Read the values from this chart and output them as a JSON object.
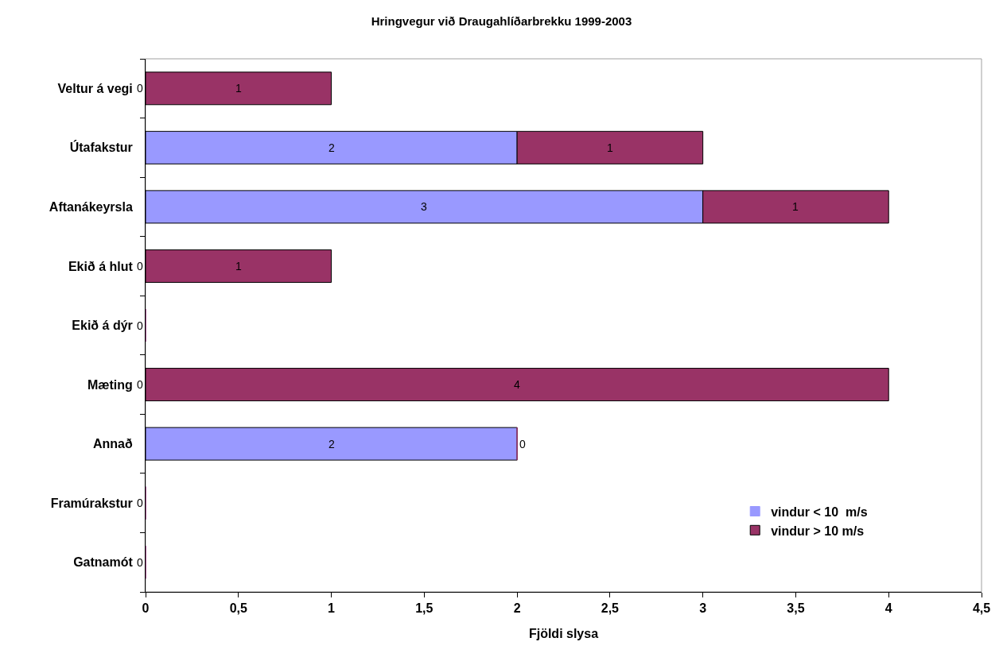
{
  "chart_data": {
    "type": "bar",
    "title": "Hringvegur við Draugahlíðarbrekku 1999-2003",
    "xlabel": "Fjöldi slysa",
    "orientation": "horizontal",
    "stacked": true,
    "categories": [
      "Veltur á vegi",
      "Útafakstur",
      "Aftanákeyrsla",
      "Ekið á hlut",
      "Ekið á dýr",
      "Mæting",
      "Annað",
      "Framúrakstur",
      "Gatnamót"
    ],
    "series": [
      {
        "name": "vindur < 10  m/s",
        "color": "#9999ff",
        "values": [
          0,
          2,
          3,
          0,
          0,
          0,
          2,
          0,
          0
        ],
        "value_labels": [
          "0",
          "2",
          "3",
          "0",
          "0",
          "0",
          "2",
          "0",
          "0"
        ]
      },
      {
        "name": "vindur > 10 m/s",
        "color": "#993366",
        "values": [
          1,
          1,
          1,
          1,
          0,
          4,
          0,
          0,
          0
        ],
        "value_labels": [
          "1",
          "1",
          "1",
          "1",
          null,
          "4",
          "0",
          null,
          null
        ]
      }
    ],
    "xlim": [
      0,
      4.5
    ],
    "xticks": [
      0,
      {
        "value": 0.5,
        "label": "0,5"
      },
      1,
      {
        "value": 1.5,
        "label": "1,5"
      },
      2,
      {
        "value": 2.5,
        "label": "2,5"
      },
      3,
      {
        "value": 3.5,
        "label": "3,5"
      },
      4,
      {
        "value": 4.5,
        "label": "4,5"
      }
    ],
    "legend": "bottom right",
    "grid": false
  }
}
